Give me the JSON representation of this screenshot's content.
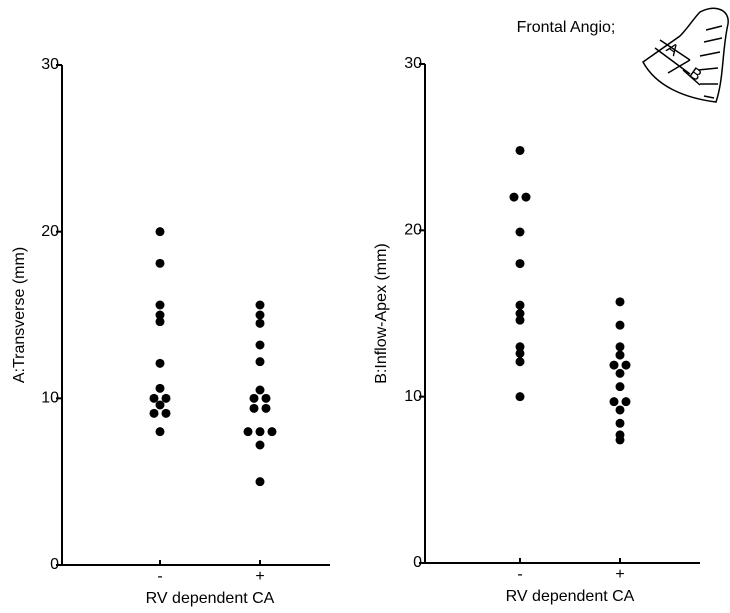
{
  "chart_data": [
    {
      "type": "strip",
      "y_label": "A:Transverse (mm)",
      "x_label": "RV dependent CA",
      "categories": [
        "-",
        "+"
      ],
      "values": [
        [
          20,
          18.1,
          15.6,
          15,
          14.6,
          12.1,
          10.6,
          10,
          10,
          9.6,
          9.1,
          9.1,
          8
        ],
        [
          15.6,
          15,
          14.5,
          13.2,
          12.2,
          10.5,
          10,
          10,
          9.4,
          9.4,
          8,
          8,
          8,
          7.2,
          5
        ]
      ],
      "color": "#000000",
      "ylim": [
        0,
        30
      ],
      "yticks": [
        0,
        10,
        20,
        30
      ]
    },
    {
      "type": "strip",
      "y_label": "B:Inflow-Apex (mm)",
      "x_label": "RV dependent CA",
      "annotation": "Frontal Angio;",
      "diagram_labels": [
        "A",
        "B"
      ],
      "categories": [
        "-",
        "+"
      ],
      "values": [
        [
          24.8,
          22,
          22,
          19.9,
          18,
          15.5,
          15,
          14.6,
          13,
          12.6,
          12.1,
          10
        ],
        [
          15.7,
          14.3,
          13,
          12.5,
          11.9,
          11.9,
          11.4,
          10.6,
          9.7,
          9.7,
          9.2,
          8.4,
          7.7,
          7.4
        ]
      ],
      "color": "#000000",
      "ylim": [
        0,
        30
      ],
      "yticks": [
        0,
        10,
        20,
        30
      ]
    }
  ]
}
